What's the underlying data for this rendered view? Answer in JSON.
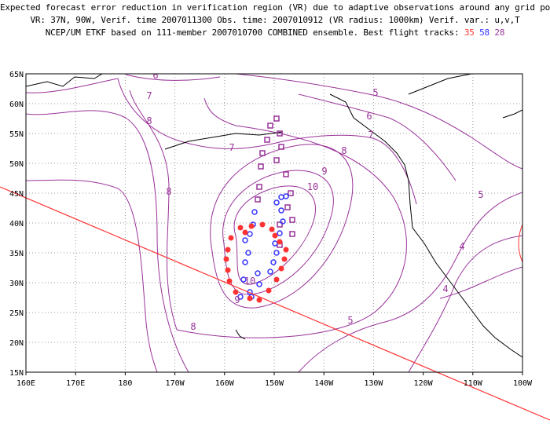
{
  "header": {
    "line1": "Expected forecast error reduction in verification region (VR) due to adaptive observations around any grid point.",
    "line2": "VR: 37N, 90W, Verif. time 2007011300  Obs. time: 2007010912 (VR radius: 1000km)   Verif. var.: u,v,T",
    "line3_prefix": "NCEP/UM ETKF based on 111-member 2007010700 COMBINED ensemble.  Best flight tracks: ",
    "track_a": "35",
    "track_b": "58",
    "track_c": "28"
  },
  "map": {
    "lon_labels": [
      "160E",
      "170E",
      "180",
      "170W",
      "160W",
      "150W",
      "140W",
      "130W",
      "120W",
      "110W",
      "100W"
    ],
    "lat_labels": [
      "65N",
      "60N",
      "55N",
      "50N",
      "45N",
      "40N",
      "35N",
      "30N",
      "25N",
      "20N",
      "15N"
    ],
    "contour_labels": [
      "6",
      "7",
      "8",
      "7",
      "8",
      "8",
      "9",
      "10",
      "10",
      "9",
      "8",
      "5",
      "6",
      "7",
      "5",
      "4",
      "4",
      "5"
    ],
    "colors": {
      "contour": "#993399",
      "track_35": "#ff3333",
      "track_58": "#3333ff",
      "track_28": "#993399",
      "verification_region": "#ff3333",
      "coast": "#000000",
      "grid": "#999999"
    }
  }
}
